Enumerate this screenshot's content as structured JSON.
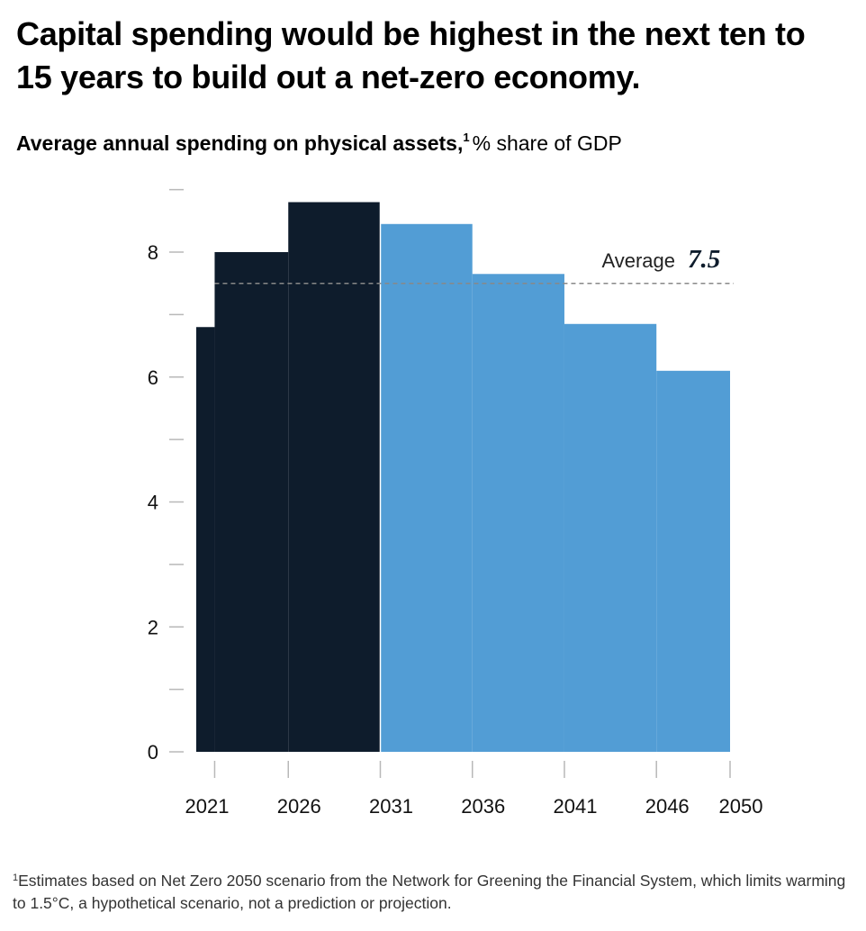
{
  "title": "Capital spending would be highest in the next ten to 15 years to build out a net-zero economy.",
  "subtitle": {
    "main": "Average annual spending on physical assets,",
    "footnote_mark": "1",
    "unit": "% share of GDP"
  },
  "colors": {
    "historical_segment": "#0e1c2c",
    "projected_segment": "#529dd5",
    "axis": "#b8b8b8",
    "average_line": "#888888"
  },
  "chart_data": {
    "type": "bar",
    "title": "Average annual spending on physical assets",
    "ylabel": "% share of GDP",
    "ylim": [
      0,
      9
    ],
    "yticks": [
      0,
      2,
      4,
      6,
      8
    ],
    "xticks": [
      "2021",
      "2026",
      "2031",
      "2036",
      "2041",
      "2046",
      "2050"
    ],
    "series": [
      {
        "color": "#0e1c2c",
        "bars": [
          {
            "start": 2021,
            "end": 2022,
            "value": 6.8
          },
          {
            "start": 2022,
            "end": 2026,
            "value": 8.0
          },
          {
            "start": 2026,
            "end": 2031,
            "value": 8.8
          }
        ]
      },
      {
        "color": "#529dd5",
        "bars": [
          {
            "start": 2031,
            "end": 2036,
            "value": 8.45
          },
          {
            "start": 2036,
            "end": 2041,
            "value": 7.65
          },
          {
            "start": 2041,
            "end": 2046,
            "value": 6.85
          },
          {
            "start": 2046,
            "end": 2050,
            "value": 6.1
          }
        ]
      }
    ],
    "average": {
      "label": "Average",
      "value": "7.5"
    }
  },
  "footnote": {
    "mark": "1",
    "text": "Estimates based on Net Zero 2050 scenario from the Network for Greening the Financial System, which limits warming to 1.5°C, a hypothetical scenario, not a prediction or projection."
  }
}
